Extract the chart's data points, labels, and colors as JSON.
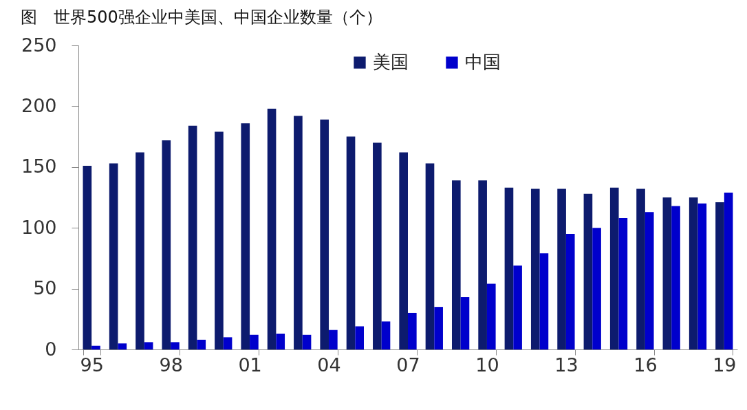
{
  "chart_data": {
    "type": "bar",
    "title": "图　世界500强企业中美国、中国企业数量（个）",
    "categories": [
      "95",
      null,
      null,
      "98",
      null,
      null,
      "01",
      null,
      null,
      "04",
      null,
      null,
      "07",
      null,
      null,
      "10",
      null,
      null,
      "13",
      null,
      null,
      "16",
      null,
      null,
      "19"
    ],
    "series": [
      {
        "name": "美国",
        "color": "#0d1b6e",
        "values": [
          151,
          153,
          162,
          172,
          184,
          179,
          186,
          198,
          192,
          189,
          175,
          170,
          162,
          153,
          139,
          139,
          133,
          132,
          132,
          128,
          133,
          132,
          125,
          125,
          121
        ]
      },
      {
        "name": "中国",
        "color": "#0000cc",
        "values": [
          3,
          5,
          6,
          6,
          8,
          10,
          12,
          13,
          12,
          16,
          19,
          23,
          30,
          35,
          43,
          54,
          69,
          79,
          95,
          100,
          108,
          113,
          118,
          120,
          129
        ]
      }
    ],
    "ylim": [
      0,
      250
    ],
    "yticks": [
      0,
      50,
      100,
      150,
      200,
      250
    ],
    "legend": "top",
    "grid": false
  }
}
